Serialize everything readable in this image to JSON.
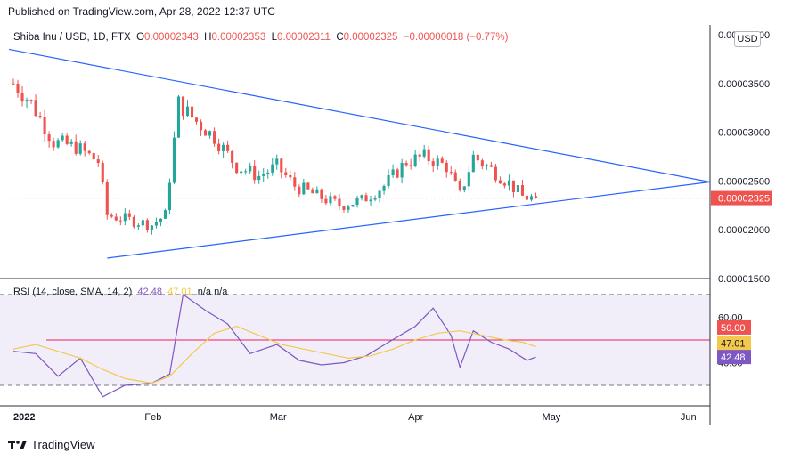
{
  "header": {
    "published": "Published on TradingView.com, Apr 28, 2022 12:37 UTC"
  },
  "legend": {
    "symbol": "Shiba Inu / USD, 1D, FTX",
    "o_label": "O",
    "o": "0.00002343",
    "h_label": "H",
    "h": "0.00002353",
    "l_label": "L",
    "l": "0.00002311",
    "c_label": "C",
    "c": "0.00002325",
    "change": "−0.00000018 (−0.77%)"
  },
  "currency_badge": "USD",
  "rsi_legend": {
    "label": "RSI (14, close, SMA, 14, 2)",
    "rsi": "42.48",
    "sma": "47.01",
    "extra": "n/a  n/a"
  },
  "footer": {
    "brand": "TradingView"
  },
  "colors": {
    "up": "#26a69a",
    "down": "#ef5350",
    "trendline": "#2962ff",
    "rsi": "#7e57c2",
    "rsi_sma": "#f2c94c",
    "rsi_mid": "#e91e63"
  },
  "chart_data": [
    {
      "type": "candlestick",
      "xlabel": "",
      "ylabel": "",
      "x_ticks": [
        "2022",
        "Feb",
        "Mar",
        "Apr",
        "May",
        "Jun"
      ],
      "x_tick_dates": [
        "2022-01-01",
        "2022-02-01",
        "2022-03-01",
        "2022-04-01",
        "2022-05-01",
        "2022-06-01"
      ],
      "x_range": [
        "2021-12-31",
        "2022-06-06"
      ],
      "y_ticks": [
        "0.00004000",
        "0.00003500",
        "0.00003000",
        "0.00002500",
        "0.00002000",
        "0.00001500"
      ],
      "ylim": [
        1.5e-05,
        4.1e-05
      ],
      "last_price": "0.00002325",
      "last_value": 2.325e-05,
      "close_series": [
        {
          "date": "2022-01-01",
          "close": 3.5e-05
        },
        {
          "date": "2022-01-05",
          "close": 3.3e-05
        },
        {
          "date": "2022-01-10",
          "close": 2.9e-05
        },
        {
          "date": "2022-01-15",
          "close": 2.85e-05
        },
        {
          "date": "2022-01-20",
          "close": 2.7e-05
        },
        {
          "date": "2022-01-22",
          "close": 2.15e-05
        },
        {
          "date": "2022-01-27",
          "close": 2.1e-05
        },
        {
          "date": "2022-02-01",
          "close": 2.05e-05
        },
        {
          "date": "2022-02-04",
          "close": 2.15e-05
        },
        {
          "date": "2022-02-07",
          "close": 3.3e-05
        },
        {
          "date": "2022-02-10",
          "close": 3.15e-05
        },
        {
          "date": "2022-02-15",
          "close": 2.95e-05
        },
        {
          "date": "2022-02-20",
          "close": 2.65e-05
        },
        {
          "date": "2022-02-25",
          "close": 2.55e-05
        },
        {
          "date": "2022-03-01",
          "close": 2.65e-05
        },
        {
          "date": "2022-03-05",
          "close": 2.45e-05
        },
        {
          "date": "2022-03-10",
          "close": 2.35e-05
        },
        {
          "date": "2022-03-15",
          "close": 2.25e-05
        },
        {
          "date": "2022-03-20",
          "close": 2.3e-05
        },
        {
          "date": "2022-03-25",
          "close": 2.45e-05
        },
        {
          "date": "2022-03-30",
          "close": 2.7e-05
        },
        {
          "date": "2022-04-03",
          "close": 2.75e-05
        },
        {
          "date": "2022-04-08",
          "close": 2.65e-05
        },
        {
          "date": "2022-04-11",
          "close": 2.35e-05
        },
        {
          "date": "2022-04-14",
          "close": 2.75e-05
        },
        {
          "date": "2022-04-18",
          "close": 2.62e-05
        },
        {
          "date": "2022-04-22",
          "close": 2.48e-05
        },
        {
          "date": "2022-04-25",
          "close": 2.34e-05
        },
        {
          "date": "2022-04-28",
          "close": 2.32e-05
        }
      ],
      "trendlines": [
        {
          "name": "upper",
          "from": {
            "date": "2021-12-31",
            "value": 3.85e-05
          },
          "to": {
            "date": "2022-06-06",
            "value": 2.49e-05
          }
        },
        {
          "name": "lower",
          "from": {
            "date": "2022-01-22",
            "value": 1.71e-05
          },
          "to": {
            "date": "2022-06-06",
            "value": 2.49e-05
          }
        }
      ]
    },
    {
      "type": "line",
      "title": "RSI (14, close, SMA, 14, 2)",
      "ylim": [
        21,
        77
      ],
      "y_ticks": [
        "60.00",
        "40.00"
      ],
      "bands": {
        "upper": 70,
        "middle": 50,
        "lower": 30
      },
      "badges": [
        "50.00",
        "47.01",
        "42.48"
      ],
      "series": [
        {
          "name": "RSI",
          "values": [
            {
              "date": "2022-01-01",
              "value": 45
            },
            {
              "date": "2022-01-06",
              "value": 44
            },
            {
              "date": "2022-01-11",
              "value": 34
            },
            {
              "date": "2022-01-16",
              "value": 42
            },
            {
              "date": "2022-01-21",
              "value": 25
            },
            {
              "date": "2022-01-26",
              "value": 30
            },
            {
              "date": "2022-02-01",
              "value": 31
            },
            {
              "date": "2022-02-05",
              "value": 35
            },
            {
              "date": "2022-02-08",
              "value": 70
            },
            {
              "date": "2022-02-13",
              "value": 63
            },
            {
              "date": "2022-02-18",
              "value": 57
            },
            {
              "date": "2022-02-23",
              "value": 44
            },
            {
              "date": "2022-03-01",
              "value": 48
            },
            {
              "date": "2022-03-06",
              "value": 41
            },
            {
              "date": "2022-03-11",
              "value": 39
            },
            {
              "date": "2022-03-16",
              "value": 40
            },
            {
              "date": "2022-03-21",
              "value": 43
            },
            {
              "date": "2022-03-26",
              "value": 49
            },
            {
              "date": "2022-04-01",
              "value": 56
            },
            {
              "date": "2022-04-05",
              "value": 64
            },
            {
              "date": "2022-04-09",
              "value": 52
            },
            {
              "date": "2022-04-11",
              "value": 38
            },
            {
              "date": "2022-04-14",
              "value": 54
            },
            {
              "date": "2022-04-18",
              "value": 49
            },
            {
              "date": "2022-04-22",
              "value": 46
            },
            {
              "date": "2022-04-26",
              "value": 41
            },
            {
              "date": "2022-04-28",
              "value": 42.48
            }
          ]
        },
        {
          "name": "SMA",
          "values": [
            {
              "date": "2022-01-01",
              "value": 46
            },
            {
              "date": "2022-01-06",
              "value": 48
            },
            {
              "date": "2022-01-11",
              "value": 45
            },
            {
              "date": "2022-01-16",
              "value": 42
            },
            {
              "date": "2022-01-21",
              "value": 37
            },
            {
              "date": "2022-01-26",
              "value": 33
            },
            {
              "date": "2022-02-01",
              "value": 31
            },
            {
              "date": "2022-02-05",
              "value": 34
            },
            {
              "date": "2022-02-10",
              "value": 44
            },
            {
              "date": "2022-02-15",
              "value": 53
            },
            {
              "date": "2022-02-20",
              "value": 56
            },
            {
              "date": "2022-02-25",
              "value": 52
            },
            {
              "date": "2022-03-02",
              "value": 48
            },
            {
              "date": "2022-03-07",
              "value": 46
            },
            {
              "date": "2022-03-12",
              "value": 44
            },
            {
              "date": "2022-03-17",
              "value": 42
            },
            {
              "date": "2022-03-22",
              "value": 43
            },
            {
              "date": "2022-03-27",
              "value": 46
            },
            {
              "date": "2022-04-01",
              "value": 50
            },
            {
              "date": "2022-04-06",
              "value": 53
            },
            {
              "date": "2022-04-11",
              "value": 54
            },
            {
              "date": "2022-04-16",
              "value": 52
            },
            {
              "date": "2022-04-21",
              "value": 50
            },
            {
              "date": "2022-04-25",
              "value": 49
            },
            {
              "date": "2022-04-28",
              "value": 47.01
            }
          ]
        }
      ]
    }
  ]
}
